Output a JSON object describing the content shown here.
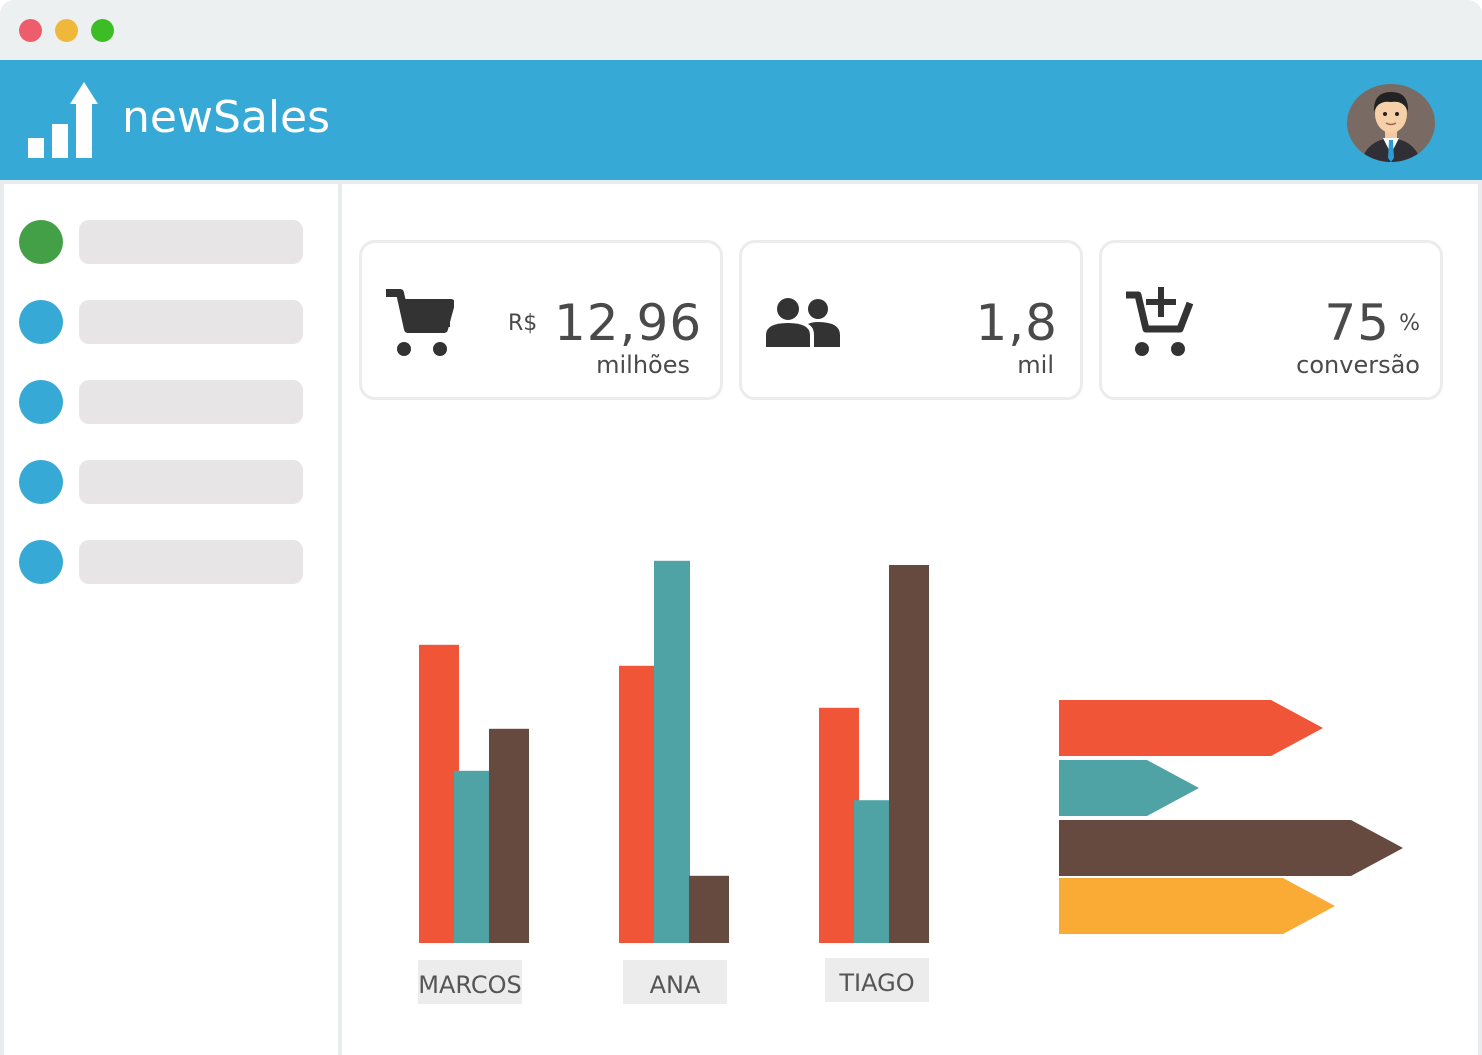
{
  "app": {
    "name": "newSales"
  },
  "window": {
    "controls": [
      "close",
      "minimize",
      "maximize"
    ]
  },
  "sidebar": {
    "items": [
      {
        "dot_color": "#43a047",
        "active": true
      },
      {
        "dot_color": "#37a9d6",
        "active": false
      },
      {
        "dot_color": "#37a9d6",
        "active": false
      },
      {
        "dot_color": "#37a9d6",
        "active": false
      },
      {
        "dot_color": "#37a9d6",
        "active": false
      }
    ]
  },
  "stats": {
    "revenue": {
      "icon": "cart-icon",
      "prefix": "R$",
      "value": "12,96",
      "unit": "milhões"
    },
    "customers": {
      "icon": "people-icon",
      "value": "1,8",
      "unit": "mil"
    },
    "conversion": {
      "icon": "cart-add-icon",
      "value": "75",
      "suffix": "%",
      "unit": "conversão"
    }
  },
  "colors": {
    "header": "#37a9d6",
    "series_red": "#f05537",
    "series_teal": "#4fa3a5",
    "series_brown": "#664a3f",
    "series_orange": "#f9ab35"
  },
  "chart_data": [
    {
      "type": "bar",
      "categories": [
        "MARCOS",
        "ANA",
        "TIAGO"
      ],
      "series": [
        {
          "color": "#f05537",
          "values": [
            71,
            66,
            56
          ]
        },
        {
          "color": "#4fa3a5",
          "values": [
            41,
            91,
            34
          ]
        },
        {
          "color": "#664a3f",
          "values": [
            51,
            16,
            90
          ]
        }
      ],
      "xlabel": "",
      "ylabel": "",
      "ylim": [
        0,
        100
      ],
      "grid": false,
      "legend": "none"
    },
    {
      "type": "bar",
      "orientation": "horizontal",
      "series": [
        {
          "color": "#f05537",
          "values": [
            66
          ]
        },
        {
          "color": "#4fa3a5",
          "values": [
            35
          ]
        },
        {
          "color": "#664a3f",
          "values": [
            86
          ]
        },
        {
          "color": "#f9ab35",
          "values": [
            69
          ]
        }
      ],
      "xlim": [
        0,
        100
      ],
      "grid": false,
      "legend": "none"
    }
  ]
}
